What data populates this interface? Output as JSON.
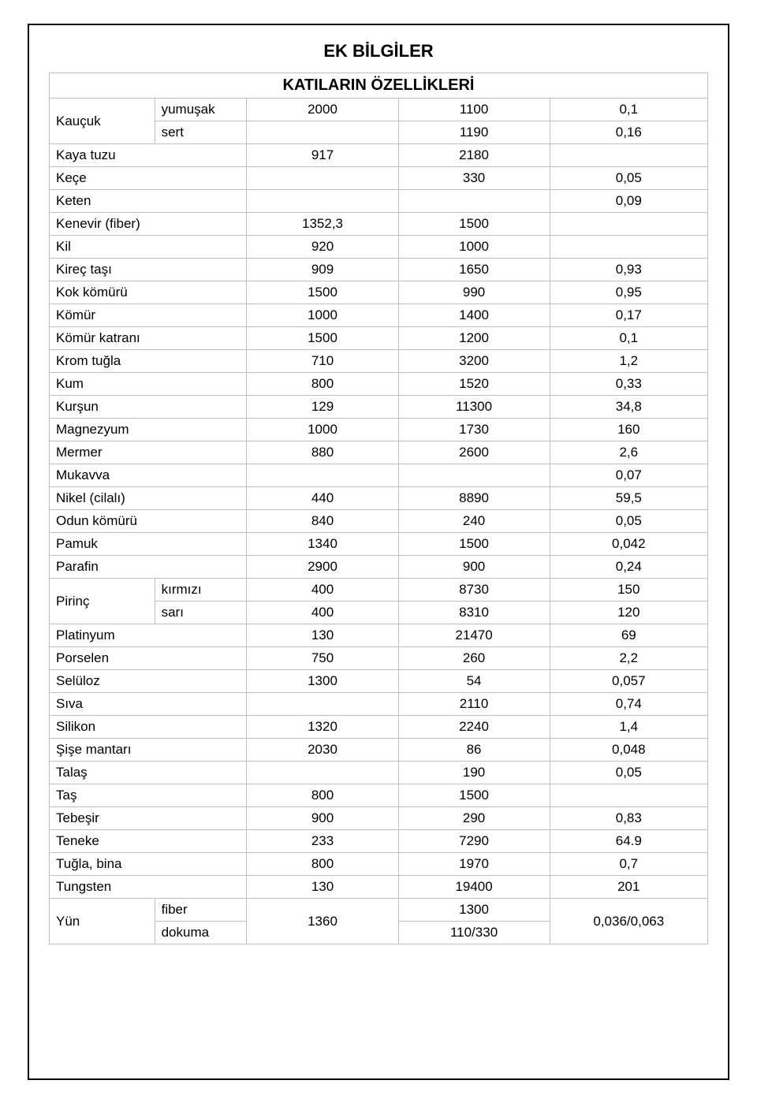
{
  "title": "EK BİLGİLER",
  "subtitle": "KATILARIN ÖZELLİKLERİ",
  "table": {
    "border_color": "#bfbfbf",
    "outer_border_color": "#000000",
    "font_size": 17,
    "text_color": "#000000",
    "background": "#ffffff",
    "columns": [
      {
        "key": "name",
        "align": "left",
        "width_pct": 16
      },
      {
        "key": "subtype",
        "align": "left",
        "width_pct": 14
      },
      {
        "key": "v1",
        "align": "center",
        "width_pct": 23
      },
      {
        "key": "v2",
        "align": "center",
        "width_pct": 23
      },
      {
        "key": "v3",
        "align": "center",
        "width_pct": 24
      }
    ],
    "rows": [
      {
        "name": "Kauçuk",
        "name_rowspan": 2,
        "subtype": "yumuşak",
        "v1": "2000",
        "v2": "1100",
        "v3": "0,1"
      },
      {
        "subtype": "sert",
        "v1": "",
        "v2": "1190",
        "v3": "0,16"
      },
      {
        "name": "Kaya tuzu",
        "name_colspan": 2,
        "v1": "917",
        "v2": "2180",
        "v3": ""
      },
      {
        "name": "Keçe",
        "name_colspan": 2,
        "v1": "",
        "v2": "330",
        "v3": "0,05"
      },
      {
        "name": "Keten",
        "name_colspan": 2,
        "v1": "",
        "v2": "",
        "v3": "0,09"
      },
      {
        "name": "Kenevir (fiber)",
        "name_colspan": 2,
        "v1": "1352,3",
        "v2": "1500",
        "v3": ""
      },
      {
        "name": "Kil",
        "name_colspan": 2,
        "v1": "920",
        "v2": "1000",
        "v3": ""
      },
      {
        "name": "Kireç taşı",
        "name_colspan": 2,
        "v1": "909",
        "v2": "1650",
        "v3": "0,93"
      },
      {
        "name": "Kok kömürü",
        "name_colspan": 2,
        "v1": "1500",
        "v2": "990",
        "v3": "0,95"
      },
      {
        "name": "Kömür",
        "name_colspan": 2,
        "v1": "1000",
        "v2": "1400",
        "v3": "0,17"
      },
      {
        "name": "Kömür katranı",
        "name_colspan": 2,
        "v1": "1500",
        "v2": "1200",
        "v3": "0,1"
      },
      {
        "name": "Krom tuğla",
        "name_colspan": 2,
        "v1": "710",
        "v2": "3200",
        "v3": "1,2"
      },
      {
        "name": "Kum",
        "name_colspan": 2,
        "v1": "800",
        "v2": "1520",
        "v3": "0,33"
      },
      {
        "name": "Kurşun",
        "name_colspan": 2,
        "v1": "129",
        "v2": "11300",
        "v3": "34,8"
      },
      {
        "name": "Magnezyum",
        "name_colspan": 2,
        "v1": "1000",
        "v2": "1730",
        "v3": "160"
      },
      {
        "name": "Mermer",
        "name_colspan": 2,
        "v1": "880",
        "v2": "2600",
        "v3": "2,6"
      },
      {
        "name": "Mukavva",
        "name_colspan": 2,
        "v1": "",
        "v2": "",
        "v3": "0,07"
      },
      {
        "name": "Nikel (cilalı)",
        "name_colspan": 2,
        "v1": "440",
        "v2": "8890",
        "v3": "59,5"
      },
      {
        "name": "Odun kömürü",
        "name_colspan": 2,
        "v1": "840",
        "v2": "240",
        "v3": "0,05"
      },
      {
        "name": "Pamuk",
        "name_colspan": 2,
        "v1": "1340",
        "v2": "1500",
        "v3": "0,042"
      },
      {
        "name": "Parafin",
        "name_colspan": 2,
        "v1": "2900",
        "v2": "900",
        "v3": "0,24"
      },
      {
        "name": "Pirinç",
        "name_rowspan": 2,
        "subtype": "kırmızı",
        "v1": "400",
        "v2": "8730",
        "v3": "150"
      },
      {
        "subtype": "sarı",
        "v1": "400",
        "v2": "8310",
        "v3": "120"
      },
      {
        "name": "Platinyum",
        "name_colspan": 2,
        "v1": "130",
        "v2": "21470",
        "v3": "69"
      },
      {
        "name": "Porselen",
        "name_colspan": 2,
        "v1": "750",
        "v2": "260",
        "v3": "2,2"
      },
      {
        "name": "Selüloz",
        "name_colspan": 2,
        "v1": "1300",
        "v2": "54",
        "v3": "0,057"
      },
      {
        "name": "Sıva",
        "name_colspan": 2,
        "v1": "",
        "v2": "2110",
        "v3": "0,74"
      },
      {
        "name": "Silikon",
        "name_colspan": 2,
        "v1": "1320",
        "v2": "2240",
        "v3": "1,4"
      },
      {
        "name": "Şişe mantarı",
        "name_colspan": 2,
        "v1": "2030",
        "v2": "86",
        "v3": "0,048"
      },
      {
        "name": "Talaş",
        "name_colspan": 2,
        "v1": "",
        "v2": "190",
        "v3": "0,05"
      },
      {
        "name": "Taş",
        "name_colspan": 2,
        "v1": "800",
        "v2": "1500",
        "v3": ""
      },
      {
        "name": "Tebeşir",
        "name_colspan": 2,
        "v1": "900",
        "v2": "290",
        "v3": "0,83"
      },
      {
        "name": "Teneke",
        "name_colspan": 2,
        "v1": "233",
        "v2": "7290",
        "v3": "64.9"
      },
      {
        "name": "Tuğla, bina",
        "name_colspan": 2,
        "v1": "800",
        "v2": "1970",
        "v3": "0,7"
      },
      {
        "name": "Tungsten",
        "name_colspan": 2,
        "v1": "130",
        "v2": "19400",
        "v3": "201"
      },
      {
        "name": "Yün",
        "name_rowspan": 2,
        "subtype": "fiber",
        "v1": "1360",
        "v1_rowspan": 2,
        "v2": "1300",
        "v3": "0,036/0,063",
        "v3_rowspan": 2
      },
      {
        "subtype": "dokuma",
        "v2": "110/330"
      }
    ]
  }
}
